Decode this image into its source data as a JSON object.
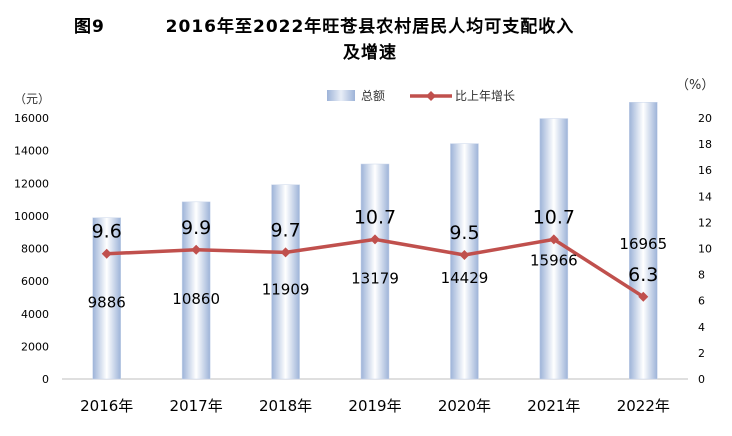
{
  "title": {
    "figure_no": "图9",
    "line1": "2016年至2022年旺苍县农村居民人均可支配收入",
    "line2": "及增速"
  },
  "chart_data": {
    "type": "bar",
    "categories": [
      "2016年",
      "2017年",
      "2018年",
      "2019年",
      "2020年",
      "2021年",
      "2022年"
    ],
    "series": [
      {
        "name": "总额",
        "type": "bar",
        "axis": "left",
        "values": [
          9886,
          10860,
          11909,
          13179,
          14429,
          15966,
          16965
        ],
        "labels": [
          "9886",
          "10860",
          "11909",
          "13179",
          "14429",
          "15966",
          "16965"
        ]
      },
      {
        "name": "比上年增长",
        "type": "line",
        "axis": "right",
        "values": [
          9.6,
          9.9,
          9.7,
          10.7,
          9.5,
          10.7,
          6.3
        ],
        "labels": [
          "9.6",
          "9.9",
          "9.7",
          "10.7",
          "9.5",
          "10.7",
          "6.3"
        ]
      }
    ],
    "ylabel_left": "（元）",
    "ylabel_right": "（%）",
    "ylim_left": [
      0,
      16000
    ],
    "yticks_left": [
      "0",
      "2000",
      "4000",
      "6000",
      "8000",
      "10000",
      "12000",
      "14000",
      "16000"
    ],
    "ylim_right": [
      0,
      20
    ],
    "yticks_right": [
      "0",
      "2",
      "4",
      "6",
      "8",
      "10",
      "12",
      "14",
      "16",
      "18",
      "20"
    ],
    "legend_position": "top-center",
    "grid": false,
    "colors": {
      "bar_edge": "#9db3d8",
      "bar_center": "#ffffff",
      "line": "#c0504d"
    }
  }
}
